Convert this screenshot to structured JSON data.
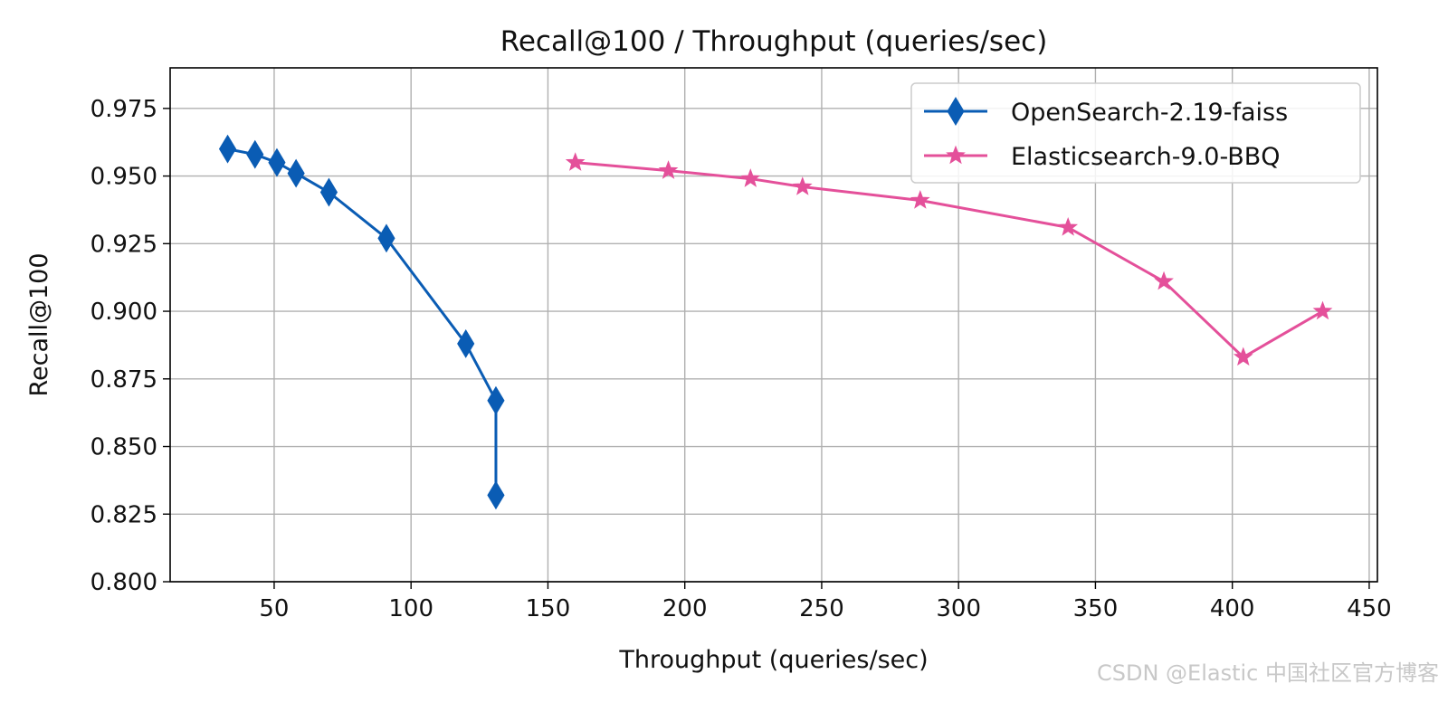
{
  "chart_data": {
    "type": "line",
    "title": "Recall@100 / Throughput (queries/sec)",
    "xlabel": "Throughput (queries/sec)",
    "ylabel": "Recall@100",
    "xlim": [
      12,
      453
    ],
    "ylim": [
      0.8,
      0.99
    ],
    "xticks": [
      50,
      100,
      150,
      200,
      250,
      300,
      350,
      400,
      450
    ],
    "xtick_labels": [
      "50",
      "100",
      "150",
      "200",
      "250",
      "300",
      "350",
      "400",
      "450"
    ],
    "yticks": [
      0.8,
      0.825,
      0.85,
      0.875,
      0.9,
      0.925,
      0.95,
      0.975
    ],
    "ytick_labels": [
      "0.800",
      "0.825",
      "0.850",
      "0.875",
      "0.900",
      "0.925",
      "0.950",
      "0.975"
    ],
    "grid": true,
    "legend_position": "top-right",
    "series": [
      {
        "name": "OpenSearch-2.19-faiss",
        "color": "#0a5cb4",
        "marker": "diamond",
        "x": [
          33,
          43,
          51,
          58,
          70,
          91,
          120,
          131,
          131
        ],
        "y": [
          0.96,
          0.958,
          0.955,
          0.951,
          0.944,
          0.927,
          0.888,
          0.867,
          0.832
        ]
      },
      {
        "name": "Elasticsearch-9.0-BBQ",
        "color": "#e4509a",
        "marker": "star",
        "x": [
          160,
          194,
          224,
          243,
          286,
          340,
          375,
          404,
          433
        ],
        "y": [
          0.955,
          0.952,
          0.949,
          0.946,
          0.941,
          0.931,
          0.911,
          0.883,
          0.9
        ]
      }
    ]
  },
  "watermark": "CSDN @Elastic 中国社区官方博客"
}
